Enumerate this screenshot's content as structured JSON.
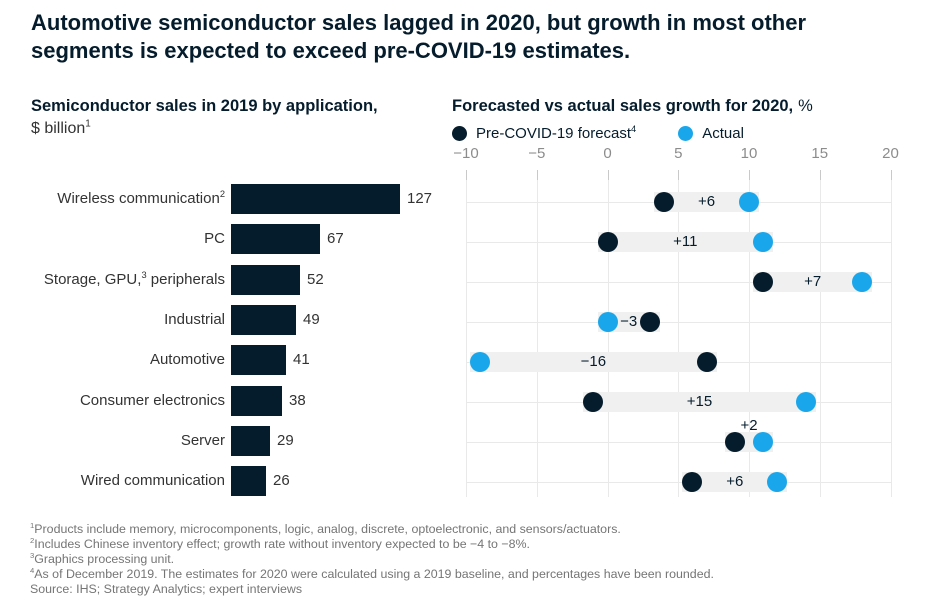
{
  "title": {
    "lines": [
      "Automotive semiconductor sales lagged in 2020, but growth in most other",
      "segments is expected to exceed pre-COVID-19 estimates."
    ]
  },
  "colors": {
    "navy": "#051C2C",
    "cyan": "#1AA6EA",
    "grid": "#E9E9E9",
    "tick": "#C9C9C9",
    "band": "#F0F0F0",
    "axis_text": "#8C8C8C",
    "label_text": "#333333",
    "footnote_text": "#757575"
  },
  "chart_data": [
    {
      "type": "bar",
      "title": "Semiconductor sales in 2019 by application,",
      "unit": "$ billion",
      "unit_sup": "1",
      "orientation": "horizontal",
      "xlim": [
        0,
        127
      ],
      "categories": [
        {
          "pre": "Wireless communication",
          "sup": "2",
          "post": ""
        },
        {
          "pre": "PC",
          "sup": "",
          "post": ""
        },
        {
          "pre": "Storage, GPU,",
          "sup": "3",
          "post": " peripherals"
        },
        {
          "pre": "Industrial",
          "sup": "",
          "post": ""
        },
        {
          "pre": "Automotive",
          "sup": "",
          "post": ""
        },
        {
          "pre": "Consumer electronics",
          "sup": "",
          "post": ""
        },
        {
          "pre": "Server",
          "sup": "",
          "post": ""
        },
        {
          "pre": "Wired communication",
          "sup": "",
          "post": ""
        }
      ],
      "values": [
        127,
        67,
        52,
        49,
        41,
        38,
        29,
        26
      ]
    },
    {
      "type": "dumbbell",
      "title": "Forecasted vs actual sales growth for 2020,",
      "unit": "%",
      "legend": [
        {
          "label": "Pre-COVID-19 forecast",
          "sup": "4",
          "series": "forecast"
        },
        {
          "label": "Actual",
          "sup": "",
          "series": "actual"
        }
      ],
      "axis": {
        "min": -10,
        "max": 20,
        "tick_values": [
          -10,
          -5,
          0,
          5,
          10,
          15,
          20
        ],
        "tick_labels": [
          "−10",
          "−5",
          "0",
          "5",
          "10",
          "15",
          "20"
        ],
        "grid": true
      },
      "categories": [
        "Wireless communication",
        "PC",
        "Storage, GPU, peripherals",
        "Industrial",
        "Automotive",
        "Consumer electronics",
        "Server",
        "Wired communication"
      ],
      "series": [
        {
          "name": "Pre-COVID-19 forecast",
          "values": [
            4,
            0,
            11,
            3,
            7,
            -1,
            9,
            6
          ]
        },
        {
          "name": "Actual",
          "values": [
            10,
            11,
            18,
            0,
            -9,
            14,
            11,
            12
          ]
        }
      ],
      "deltas": [
        {
          "label": "+6",
          "position": "in"
        },
        {
          "label": "+11",
          "position": "in"
        },
        {
          "label": "+7",
          "position": "in"
        },
        {
          "label": "−3",
          "position": "in"
        },
        {
          "label": "−16",
          "position": "in"
        },
        {
          "label": "+15",
          "position": "in"
        },
        {
          "label": "+2",
          "position": "above"
        },
        {
          "label": "+6",
          "position": "in"
        }
      ]
    }
  ],
  "footnotes": [
    {
      "sup": "1",
      "text": "Products include memory, microcomponents, logic, analog, discrete, optoelectronic, and sensors/actuators."
    },
    {
      "sup": "2",
      "text": "Includes Chinese inventory effect; growth rate without inventory expected to be −4 to −8%."
    },
    {
      "sup": "3",
      "text": "Graphics processing unit."
    },
    {
      "sup": "4",
      "text": "As of December 2019. The estimates for 2020 were calculated using a 2019 baseline, and percentages have been rounded."
    },
    {
      "sup": "",
      "text": "Source: IHS; Strategy Analytics; expert interviews"
    }
  ]
}
